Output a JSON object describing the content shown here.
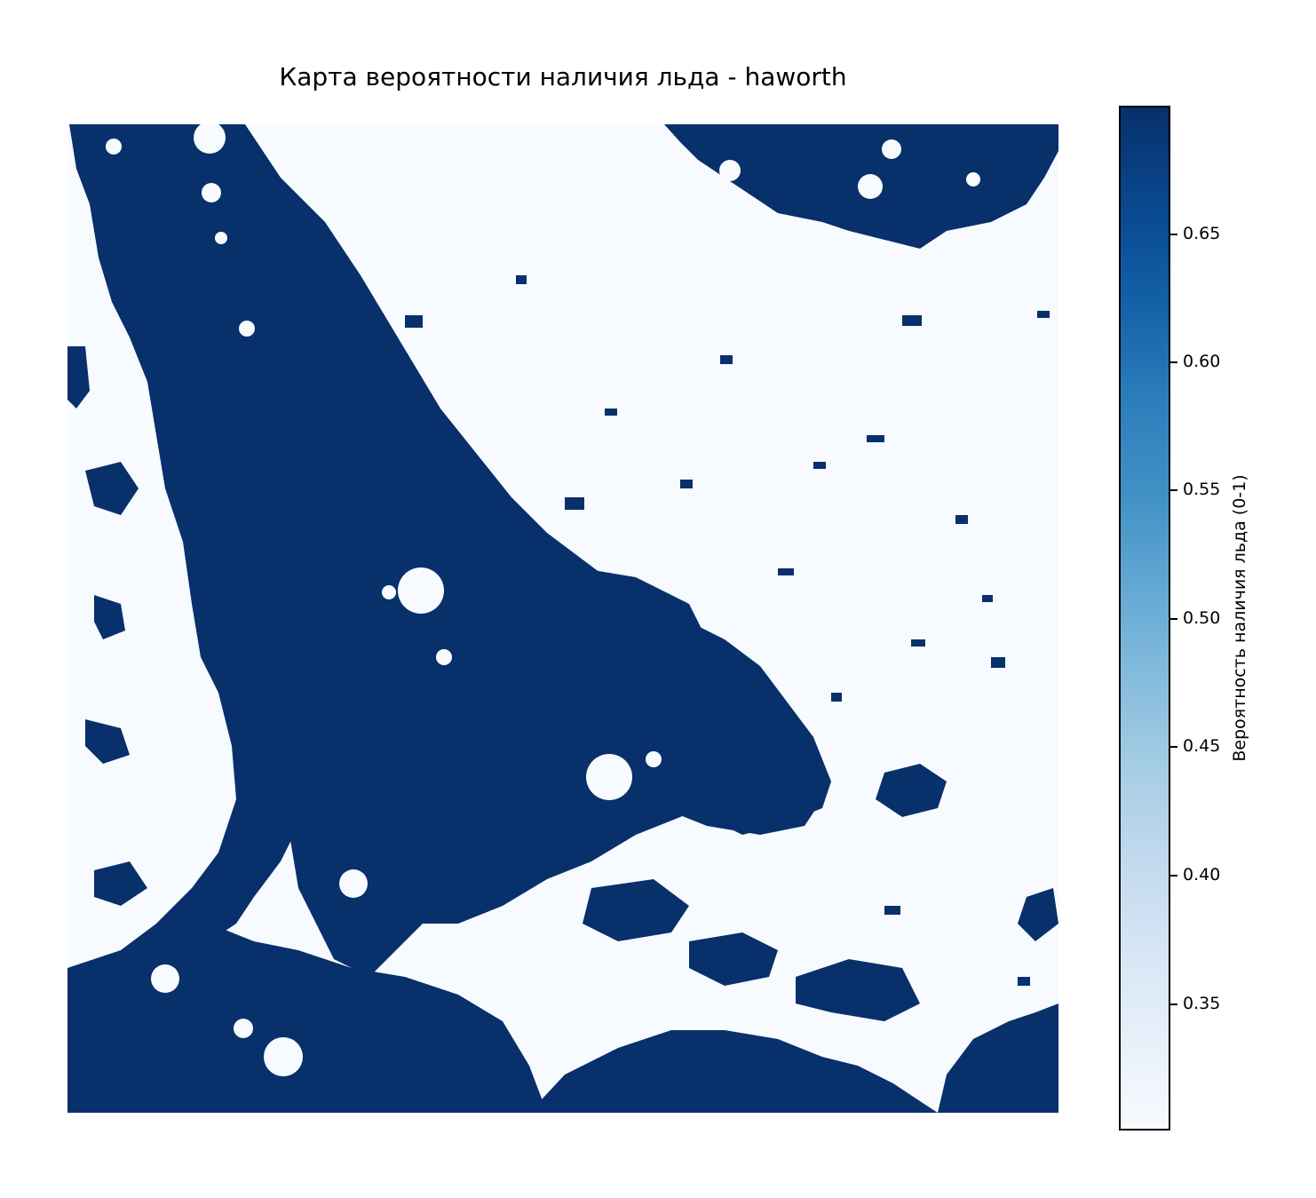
{
  "chart_data": {
    "type": "heatmap",
    "title": "Карта вероятности наличия льда - haworth",
    "colormap": "Blues",
    "colorbar": {
      "label": "Вероятность наличия льда (0-1)",
      "range": [
        0.3,
        0.7
      ],
      "ticks": [
        0.35,
        0.4,
        0.45,
        0.5,
        0.55,
        0.6,
        0.65
      ],
      "tick_labels": [
        "0.35",
        "0.40",
        "0.45",
        "0.50",
        "0.55",
        "0.60",
        "0.65"
      ]
    },
    "axes": "off",
    "low_value": 0.3,
    "high_value": 0.7,
    "low_color": "#f7fbff",
    "high_color": "#08306b"
  }
}
